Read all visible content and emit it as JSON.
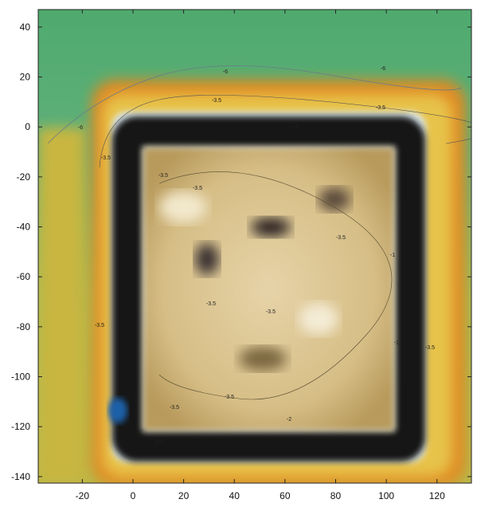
{
  "chart_data": {
    "type": "map",
    "xlim": [
      -37.4,
      133.6
    ],
    "xticks": [
      -20,
      0,
      20,
      40,
      60,
      80,
      100,
      120
    ],
    "ylim": [
      -142.6,
      47
    ],
    "yticks": [
      40,
      20,
      0,
      -20,
      -40,
      -60,
      -80,
      -100,
      -120,
      -140
    ],
    "contour_labels": [
      "-6",
      "-6",
      "-6",
      "-3.5",
      "-3.5",
      "-3.5",
      "-3.5",
      "-3.5",
      "-3.5",
      "-3.5",
      "-3.5",
      "-3.5",
      "-3.5",
      "-3.5",
      "-3.5",
      "-3.5",
      "-1",
      "-1",
      "-1",
      "-2"
    ]
  }
}
